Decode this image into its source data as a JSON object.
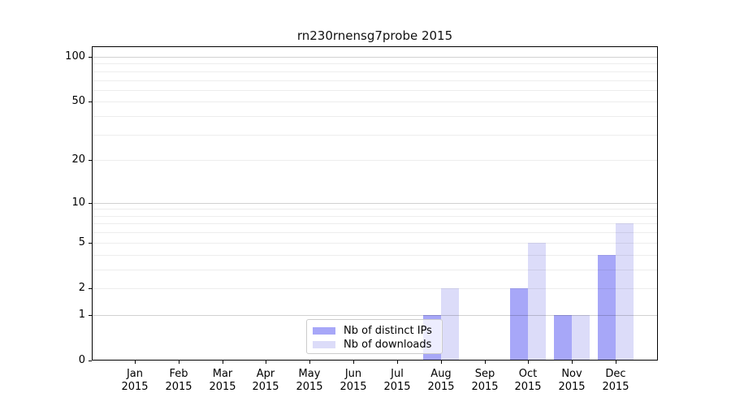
{
  "chart_data": {
    "type": "bar",
    "title": "rn230rnensg7probe 2015",
    "x_tick_months": [
      "Jan",
      "Feb",
      "Mar",
      "Apr",
      "May",
      "Jun",
      "Jul",
      "Aug",
      "Sep",
      "Oct",
      "Nov",
      "Dec"
    ],
    "x_tick_year": "2015",
    "series": [
      {
        "name": "Nb of distinct IPs",
        "color": "#a7a7f8",
        "values": [
          0,
          0,
          0,
          0,
          0,
          0,
          0,
          1,
          0,
          2,
          1,
          4
        ]
      },
      {
        "name": "Nb of downloads",
        "color": "#dcdcf9",
        "values": [
          0,
          0,
          0,
          0,
          0,
          0,
          0,
          2,
          0,
          5,
          1,
          7
        ]
      }
    ],
    "y_ticks": [
      0,
      1,
      2,
      5,
      10,
      20,
      50,
      100
    ],
    "y_scale": "log1p",
    "y_axis_top_value": 117,
    "grid": {
      "major_values": [
        1,
        10,
        100
      ],
      "minor_values": [
        2,
        3,
        4,
        5,
        6,
        7,
        8,
        9,
        20,
        30,
        40,
        50,
        60,
        70,
        80,
        90
      ],
      "major_color": "rgba(0,0,0,0.18)",
      "minor_color": "rgba(0,0,0,0.07)"
    },
    "legend_position": "lower center-left"
  }
}
